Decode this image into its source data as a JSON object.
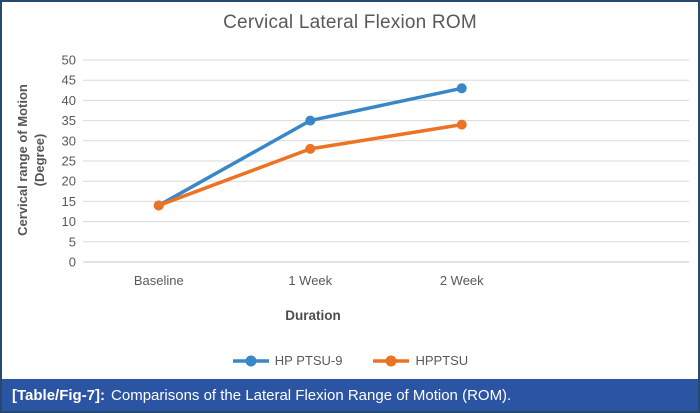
{
  "figure": {
    "title": "Cervical Lateral Flexion ROM",
    "caption_label": "[Table/Fig-7]:",
    "caption_text": "Comparisons of the Lateral Flexion Range of Motion (ROM)."
  },
  "chart_data": {
    "type": "line",
    "title": "Cervical Lateral Flexion ROM",
    "categories": [
      "Baseline",
      "1 Week",
      "2 Week"
    ],
    "series": [
      {
        "name": "HP PTSU-9",
        "color": "#3a87c7",
        "values": [
          14,
          35,
          43
        ]
      },
      {
        "name": "HPPTSU",
        "color": "#ec7323",
        "values": [
          14,
          28,
          34
        ]
      }
    ],
    "xlabel": "Duration",
    "ylabel": "Cervical range of Motion (Degree)",
    "ylim": [
      0,
      50
    ],
    "ytick_step": 5,
    "grid": true,
    "gridline_color": "#d9d9d9",
    "axis_text_color": "#595959",
    "legend_position": "bottom",
    "marker": "circle"
  }
}
